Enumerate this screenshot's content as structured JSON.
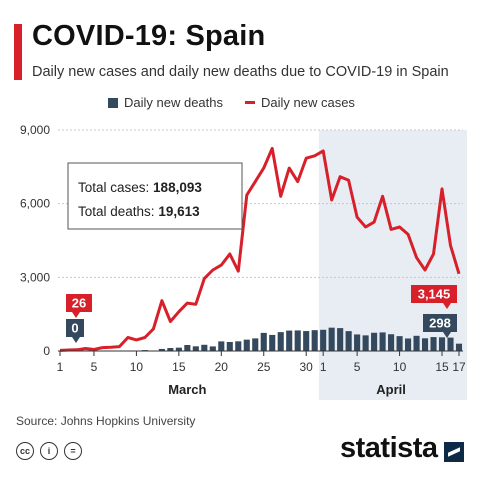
{
  "title": "COVID-19: Spain",
  "subtitle": "Daily new cases and daily new deaths due to COVID-19 in Spain",
  "legend": {
    "deaths": "Daily new deaths",
    "cases": "Daily new cases"
  },
  "summary": {
    "cases_label": "Total cases: ",
    "cases_value": "188,093",
    "deaths_label": "Total deaths: ",
    "deaths_value": "19,613"
  },
  "source": "Source: Johns Hopkins University",
  "brand": "statista",
  "license_icons": [
    "cc-icon",
    "by-icon",
    "nd-icon"
  ],
  "chart_data": {
    "type": "bar+line",
    "x": [
      "Mar 1",
      "Mar 2",
      "Mar 3",
      "Mar 4",
      "Mar 5",
      "Mar 6",
      "Mar 7",
      "Mar 8",
      "Mar 9",
      "Mar 10",
      "Mar 11",
      "Mar 12",
      "Mar 13",
      "Mar 14",
      "Mar 15",
      "Mar 16",
      "Mar 17",
      "Mar 18",
      "Mar 19",
      "Mar 20",
      "Mar 21",
      "Mar 22",
      "Mar 23",
      "Mar 24",
      "Mar 25",
      "Mar 26",
      "Mar 27",
      "Mar 28",
      "Mar 29",
      "Mar 30",
      "Mar 31",
      "Apr 1",
      "Apr 2",
      "Apr 3",
      "Apr 4",
      "Apr 5",
      "Apr 6",
      "Apr 7",
      "Apr 8",
      "Apr 9",
      "Apr 10",
      "Apr 11",
      "Apr 12",
      "Apr 13",
      "Apr 14",
      "Apr 15",
      "Apr 16",
      "Apr 17"
    ],
    "x_tick_labels": [
      "1",
      "5",
      "10",
      "15",
      "20",
      "25",
      "30",
      "1",
      "5",
      "10",
      "15",
      "17"
    ],
    "x_tick_index": [
      0,
      4,
      9,
      14,
      19,
      24,
      29,
      31,
      35,
      40,
      45,
      47
    ],
    "month_labels": [
      {
        "text": "March",
        "from": 0,
        "to": 30
      },
      {
        "text": "April",
        "from": 31,
        "to": 47
      }
    ],
    "highlight_range": [
      31,
      47
    ],
    "series": [
      {
        "name": "Daily new deaths",
        "type": "bar",
        "color": "#34495e",
        "values": [
          0,
          3,
          5,
          2,
          0,
          5,
          4,
          8,
          17,
          12,
          37,
          5,
          84,
          121,
          136,
          244,
          191,
          253,
          187,
          391,
          367,
          394,
          462,
          514,
          738,
          655,
          769,
          832,
          838,
          812,
          849,
          864,
          950,
          932,
          809,
          674,
          637,
          743,
          757,
          683,
          605,
          510,
          619,
          517,
          567,
          557,
          546,
          298
        ]
      },
      {
        "name": "Daily new cases",
        "type": "line",
        "color": "#d7202a",
        "values": [
          26,
          40,
          50,
          100,
          60,
          140,
          150,
          180,
          550,
          450,
          550,
          900,
          2050,
          1200,
          1600,
          1950,
          1900,
          2950,
          3300,
          3500,
          3950,
          3250,
          6350,
          6900,
          7450,
          8250,
          6300,
          7450,
          6900,
          7850,
          7950,
          8150,
          6150,
          7100,
          6950,
          5450,
          5050,
          5250,
          6300,
          4950,
          5050,
          4750,
          3800,
          3300,
          3950,
          6600,
          4300,
          3145
        ]
      }
    ],
    "y_ticks": [
      0,
      3000,
      6000,
      9000
    ],
    "ylim": [
      0,
      9000
    ],
    "callouts": [
      {
        "label": "26",
        "series": "Daily new cases",
        "index": 0
      },
      {
        "label": "0",
        "series": "Daily new deaths",
        "index": 0
      },
      {
        "label": "3,145",
        "series": "Daily new cases",
        "index": 47
      },
      {
        "label": "298",
        "series": "Daily new deaths",
        "index": 47
      }
    ],
    "grid": true
  }
}
